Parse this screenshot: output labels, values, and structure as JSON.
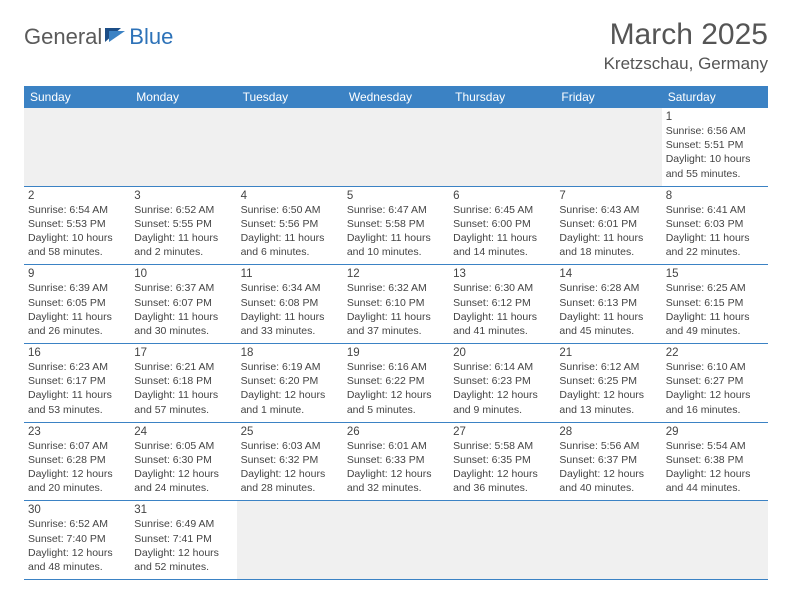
{
  "logo": {
    "word1": "General",
    "word2": "Blue"
  },
  "title": "March 2025",
  "location": "Kretzschau, Germany",
  "colors": {
    "header_bg": "#3b82c4",
    "header_text": "#ffffff",
    "cell_border": "#3b82c4",
    "empty_bg": "#f0f0f0",
    "text": "#444444",
    "logo_gray": "#5a5a5a",
    "logo_blue": "#2d72b8"
  },
  "day_headers": [
    "Sunday",
    "Monday",
    "Tuesday",
    "Wednesday",
    "Thursday",
    "Friday",
    "Saturday"
  ],
  "weeks": [
    [
      null,
      null,
      null,
      null,
      null,
      null,
      {
        "n": "1",
        "sunrise": "Sunrise: 6:56 AM",
        "sunset": "Sunset: 5:51 PM",
        "daylight": "Daylight: 10 hours and 55 minutes."
      }
    ],
    [
      {
        "n": "2",
        "sunrise": "Sunrise: 6:54 AM",
        "sunset": "Sunset: 5:53 PM",
        "daylight": "Daylight: 10 hours and 58 minutes."
      },
      {
        "n": "3",
        "sunrise": "Sunrise: 6:52 AM",
        "sunset": "Sunset: 5:55 PM",
        "daylight": "Daylight: 11 hours and 2 minutes."
      },
      {
        "n": "4",
        "sunrise": "Sunrise: 6:50 AM",
        "sunset": "Sunset: 5:56 PM",
        "daylight": "Daylight: 11 hours and 6 minutes."
      },
      {
        "n": "5",
        "sunrise": "Sunrise: 6:47 AM",
        "sunset": "Sunset: 5:58 PM",
        "daylight": "Daylight: 11 hours and 10 minutes."
      },
      {
        "n": "6",
        "sunrise": "Sunrise: 6:45 AM",
        "sunset": "Sunset: 6:00 PM",
        "daylight": "Daylight: 11 hours and 14 minutes."
      },
      {
        "n": "7",
        "sunrise": "Sunrise: 6:43 AM",
        "sunset": "Sunset: 6:01 PM",
        "daylight": "Daylight: 11 hours and 18 minutes."
      },
      {
        "n": "8",
        "sunrise": "Sunrise: 6:41 AM",
        "sunset": "Sunset: 6:03 PM",
        "daylight": "Daylight: 11 hours and 22 minutes."
      }
    ],
    [
      {
        "n": "9",
        "sunrise": "Sunrise: 6:39 AM",
        "sunset": "Sunset: 6:05 PM",
        "daylight": "Daylight: 11 hours and 26 minutes."
      },
      {
        "n": "10",
        "sunrise": "Sunrise: 6:37 AM",
        "sunset": "Sunset: 6:07 PM",
        "daylight": "Daylight: 11 hours and 30 minutes."
      },
      {
        "n": "11",
        "sunrise": "Sunrise: 6:34 AM",
        "sunset": "Sunset: 6:08 PM",
        "daylight": "Daylight: 11 hours and 33 minutes."
      },
      {
        "n": "12",
        "sunrise": "Sunrise: 6:32 AM",
        "sunset": "Sunset: 6:10 PM",
        "daylight": "Daylight: 11 hours and 37 minutes."
      },
      {
        "n": "13",
        "sunrise": "Sunrise: 6:30 AM",
        "sunset": "Sunset: 6:12 PM",
        "daylight": "Daylight: 11 hours and 41 minutes."
      },
      {
        "n": "14",
        "sunrise": "Sunrise: 6:28 AM",
        "sunset": "Sunset: 6:13 PM",
        "daylight": "Daylight: 11 hours and 45 minutes."
      },
      {
        "n": "15",
        "sunrise": "Sunrise: 6:25 AM",
        "sunset": "Sunset: 6:15 PM",
        "daylight": "Daylight: 11 hours and 49 minutes."
      }
    ],
    [
      {
        "n": "16",
        "sunrise": "Sunrise: 6:23 AM",
        "sunset": "Sunset: 6:17 PM",
        "daylight": "Daylight: 11 hours and 53 minutes."
      },
      {
        "n": "17",
        "sunrise": "Sunrise: 6:21 AM",
        "sunset": "Sunset: 6:18 PM",
        "daylight": "Daylight: 11 hours and 57 minutes."
      },
      {
        "n": "18",
        "sunrise": "Sunrise: 6:19 AM",
        "sunset": "Sunset: 6:20 PM",
        "daylight": "Daylight: 12 hours and 1 minute."
      },
      {
        "n": "19",
        "sunrise": "Sunrise: 6:16 AM",
        "sunset": "Sunset: 6:22 PM",
        "daylight": "Daylight: 12 hours and 5 minutes."
      },
      {
        "n": "20",
        "sunrise": "Sunrise: 6:14 AM",
        "sunset": "Sunset: 6:23 PM",
        "daylight": "Daylight: 12 hours and 9 minutes."
      },
      {
        "n": "21",
        "sunrise": "Sunrise: 6:12 AM",
        "sunset": "Sunset: 6:25 PM",
        "daylight": "Daylight: 12 hours and 13 minutes."
      },
      {
        "n": "22",
        "sunrise": "Sunrise: 6:10 AM",
        "sunset": "Sunset: 6:27 PM",
        "daylight": "Daylight: 12 hours and 16 minutes."
      }
    ],
    [
      {
        "n": "23",
        "sunrise": "Sunrise: 6:07 AM",
        "sunset": "Sunset: 6:28 PM",
        "daylight": "Daylight: 12 hours and 20 minutes."
      },
      {
        "n": "24",
        "sunrise": "Sunrise: 6:05 AM",
        "sunset": "Sunset: 6:30 PM",
        "daylight": "Daylight: 12 hours and 24 minutes."
      },
      {
        "n": "25",
        "sunrise": "Sunrise: 6:03 AM",
        "sunset": "Sunset: 6:32 PM",
        "daylight": "Daylight: 12 hours and 28 minutes."
      },
      {
        "n": "26",
        "sunrise": "Sunrise: 6:01 AM",
        "sunset": "Sunset: 6:33 PM",
        "daylight": "Daylight: 12 hours and 32 minutes."
      },
      {
        "n": "27",
        "sunrise": "Sunrise: 5:58 AM",
        "sunset": "Sunset: 6:35 PM",
        "daylight": "Daylight: 12 hours and 36 minutes."
      },
      {
        "n": "28",
        "sunrise": "Sunrise: 5:56 AM",
        "sunset": "Sunset: 6:37 PM",
        "daylight": "Daylight: 12 hours and 40 minutes."
      },
      {
        "n": "29",
        "sunrise": "Sunrise: 5:54 AM",
        "sunset": "Sunset: 6:38 PM",
        "daylight": "Daylight: 12 hours and 44 minutes."
      }
    ],
    [
      {
        "n": "30",
        "sunrise": "Sunrise: 6:52 AM",
        "sunset": "Sunset: 7:40 PM",
        "daylight": "Daylight: 12 hours and 48 minutes."
      },
      {
        "n": "31",
        "sunrise": "Sunrise: 6:49 AM",
        "sunset": "Sunset: 7:41 PM",
        "daylight": "Daylight: 12 hours and 52 minutes."
      },
      null,
      null,
      null,
      null,
      null
    ]
  ]
}
